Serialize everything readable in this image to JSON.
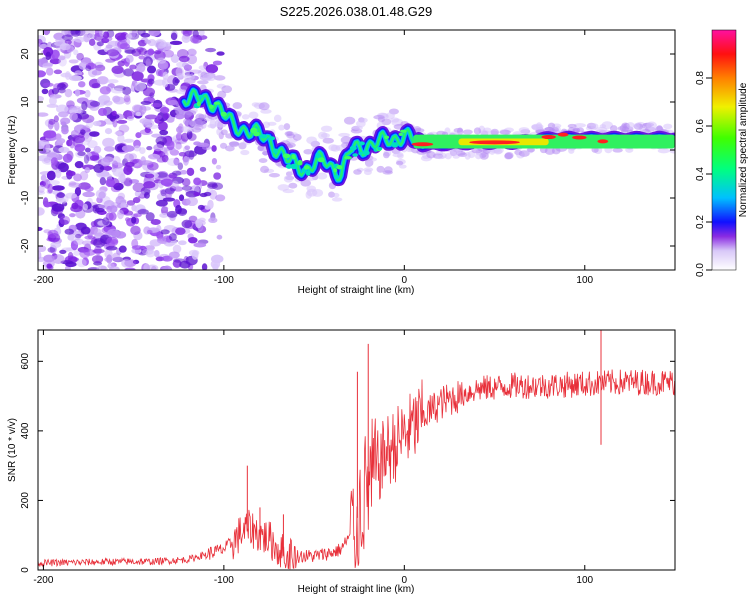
{
  "title": "S225.2026.038.01.48.G29",
  "chart_data": [
    {
      "type": "heatmap",
      "xlabel": "Height of straight line (km)",
      "ylabel": "Frequency (Hz)",
      "xlim": [
        -203,
        150
      ],
      "ylim": [
        -25,
        25
      ],
      "xticks": [
        -200,
        -100,
        0,
        100
      ],
      "yticks": [
        -20,
        -10,
        0,
        10,
        20
      ],
      "xtick_labels": [
        "-200",
        "-100",
        "0",
        "100"
      ],
      "ytick_labels": [
        "-20",
        "-10",
        "0",
        "10",
        "20"
      ],
      "ridge": [
        {
          "x": -120,
          "y": 11
        },
        {
          "x": -105,
          "y": 10
        },
        {
          "x": -95,
          "y": 5
        },
        {
          "x": -85,
          "y": 4
        },
        {
          "x": -75,
          "y": 2
        },
        {
          "x": -65,
          "y": -2
        },
        {
          "x": -55,
          "y": -4
        },
        {
          "x": -45,
          "y": -2
        },
        {
          "x": -35,
          "y": -5
        },
        {
          "x": -30,
          "y": 0
        },
        {
          "x": -20,
          "y": 1
        },
        {
          "x": -10,
          "y": 2
        },
        {
          "x": 0,
          "y": 3
        },
        {
          "x": 10,
          "y": 1
        },
        {
          "x": 40,
          "y": 1.5
        },
        {
          "x": 60,
          "y": 1.5
        },
        {
          "x": 80,
          "y": 2.5
        },
        {
          "x": 100,
          "y": 2.5
        },
        {
          "x": 120,
          "y": 2.5
        },
        {
          "x": 150,
          "y": 2.5
        }
      ],
      "colorbar": {
        "label": "Normalized spectral amplitude",
        "range": [
          0,
          1
        ],
        "ticks": [
          0,
          0.2,
          0.4,
          0.6,
          0.8
        ],
        "tick_labels": [
          "0.0",
          "0.2",
          "0.4",
          "0.6",
          "0.8"
        ]
      }
    },
    {
      "type": "line",
      "xlabel": "Height of straight line (km)",
      "ylabel": "SNR (10 * v/v)",
      "xlim": [
        -203,
        150
      ],
      "ylim": [
        0,
        690
      ],
      "xticks": [
        -200,
        -100,
        0,
        100
      ],
      "yticks": [
        0,
        200,
        400,
        600
      ],
      "xtick_labels": [
        "-200",
        "-100",
        "0",
        "100"
      ],
      "ytick_labels": [
        "0",
        "200",
        "400",
        "600"
      ],
      "color": "#e8303a",
      "series": [
        {
          "name": "SNR",
          "x": [
            -203,
            -180,
            -160,
            -140,
            -120,
            -110,
            -100,
            -95,
            -90,
            -85,
            -80,
            -75,
            -70,
            -65,
            -60,
            -55,
            -50,
            -45,
            -40,
            -35,
            -30,
            -26,
            -22,
            -18,
            -14,
            -10,
            -5,
            0,
            5,
            10,
            15,
            20,
            25,
            30,
            40,
            50,
            60,
            80,
            100,
            120,
            150
          ],
          "y": [
            20,
            22,
            24,
            24,
            30,
            45,
            60,
            80,
            110,
            120,
            100,
            90,
            60,
            45,
            40,
            40,
            40,
            45,
            50,
            60,
            100,
            150,
            220,
            260,
            300,
            340,
            360,
            390,
            410,
            440,
            460,
            480,
            490,
            500,
            520,
            525,
            530,
            530,
            535,
            540,
            540
          ]
        }
      ],
      "spikes": [
        {
          "x": -87,
          "y": 300
        },
        {
          "x": -80,
          "y": 180
        },
        {
          "x": -67,
          "y": 160
        },
        {
          "x": -26,
          "y": 570
        },
        {
          "x": -20,
          "y": 650
        },
        {
          "x": 109,
          "y": 690
        },
        {
          "x": 109,
          "y": 360
        }
      ]
    }
  ]
}
